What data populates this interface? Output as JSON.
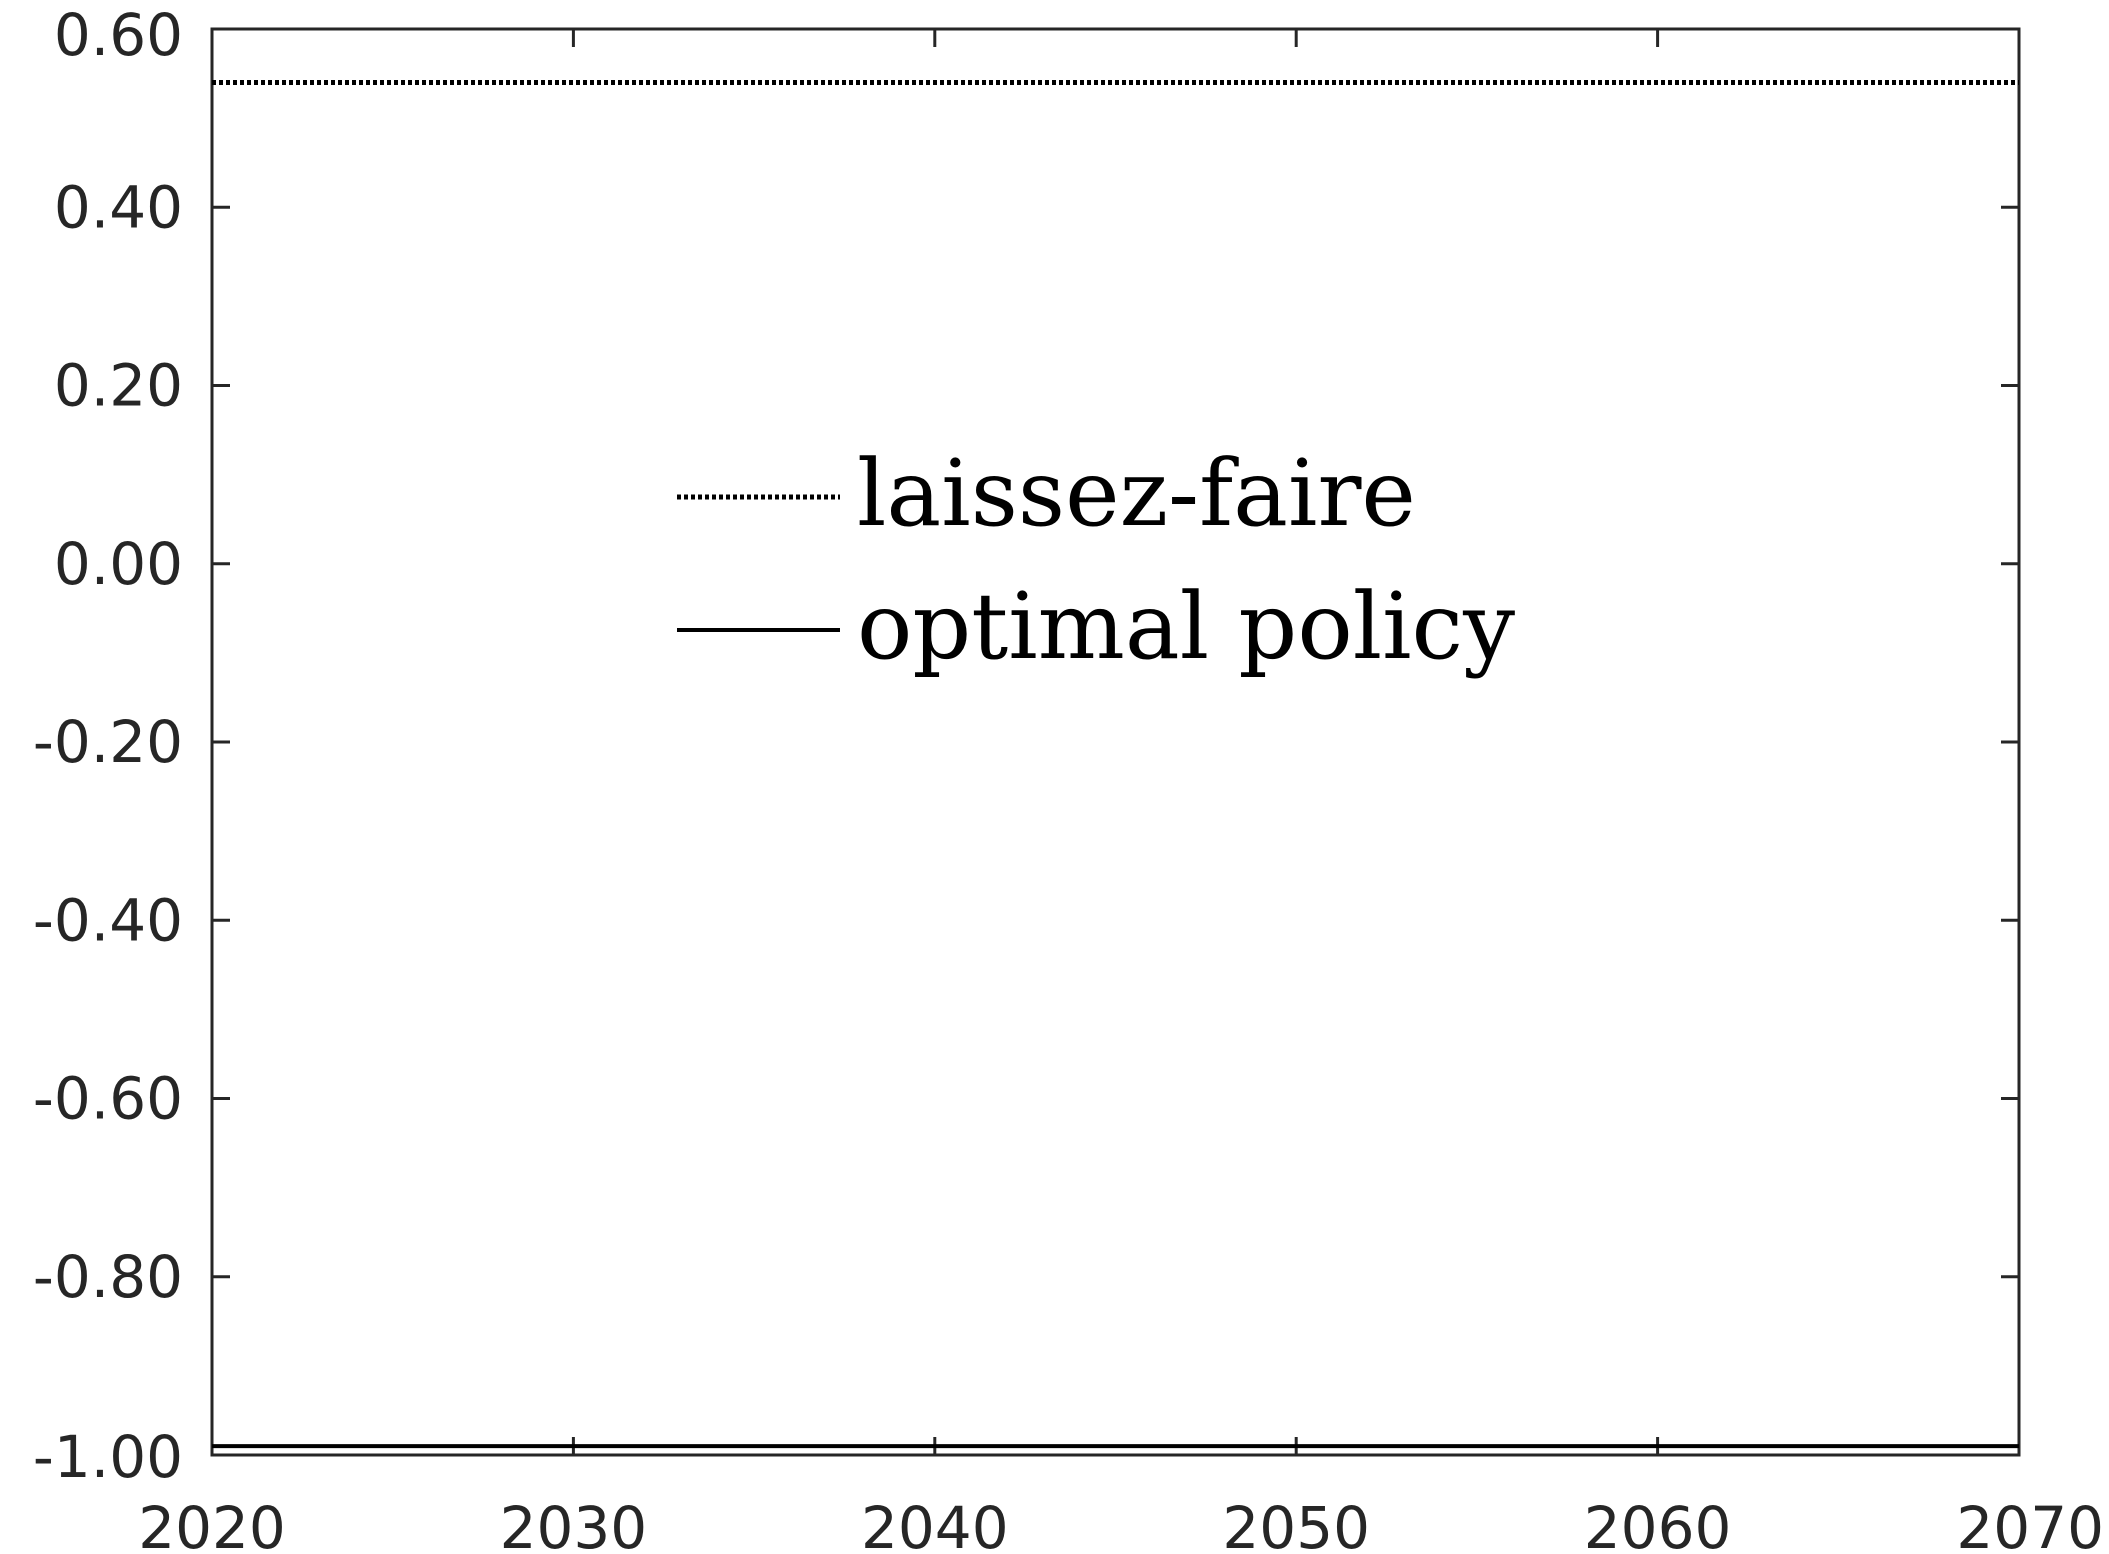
{
  "chart_data": {
    "type": "line",
    "title": "",
    "xlabel": "",
    "ylabel": "",
    "xlim": [
      2020,
      2070
    ],
    "ylim": [
      -1.0,
      0.6
    ],
    "xticks": [
      "2020",
      "2030",
      "2040",
      "2050",
      "2060",
      "2070"
    ],
    "yticks": [
      "0.60",
      "0.40",
      "0.20",
      "0.00",
      "-0.20",
      "-0.40",
      "-0.60",
      "-0.80",
      "-1.00"
    ],
    "grid": false,
    "legend_position": "center",
    "series": [
      {
        "name": "laissez-faire",
        "style": "dotted",
        "color": "#000000",
        "x": [
          2020,
          2070
        ],
        "y": [
          0.54,
          0.54
        ]
      },
      {
        "name": "optimal policy",
        "style": "solid",
        "color": "#000000",
        "x": [
          2020,
          2070
        ],
        "y": [
          -0.99,
          -0.99
        ]
      }
    ]
  }
}
